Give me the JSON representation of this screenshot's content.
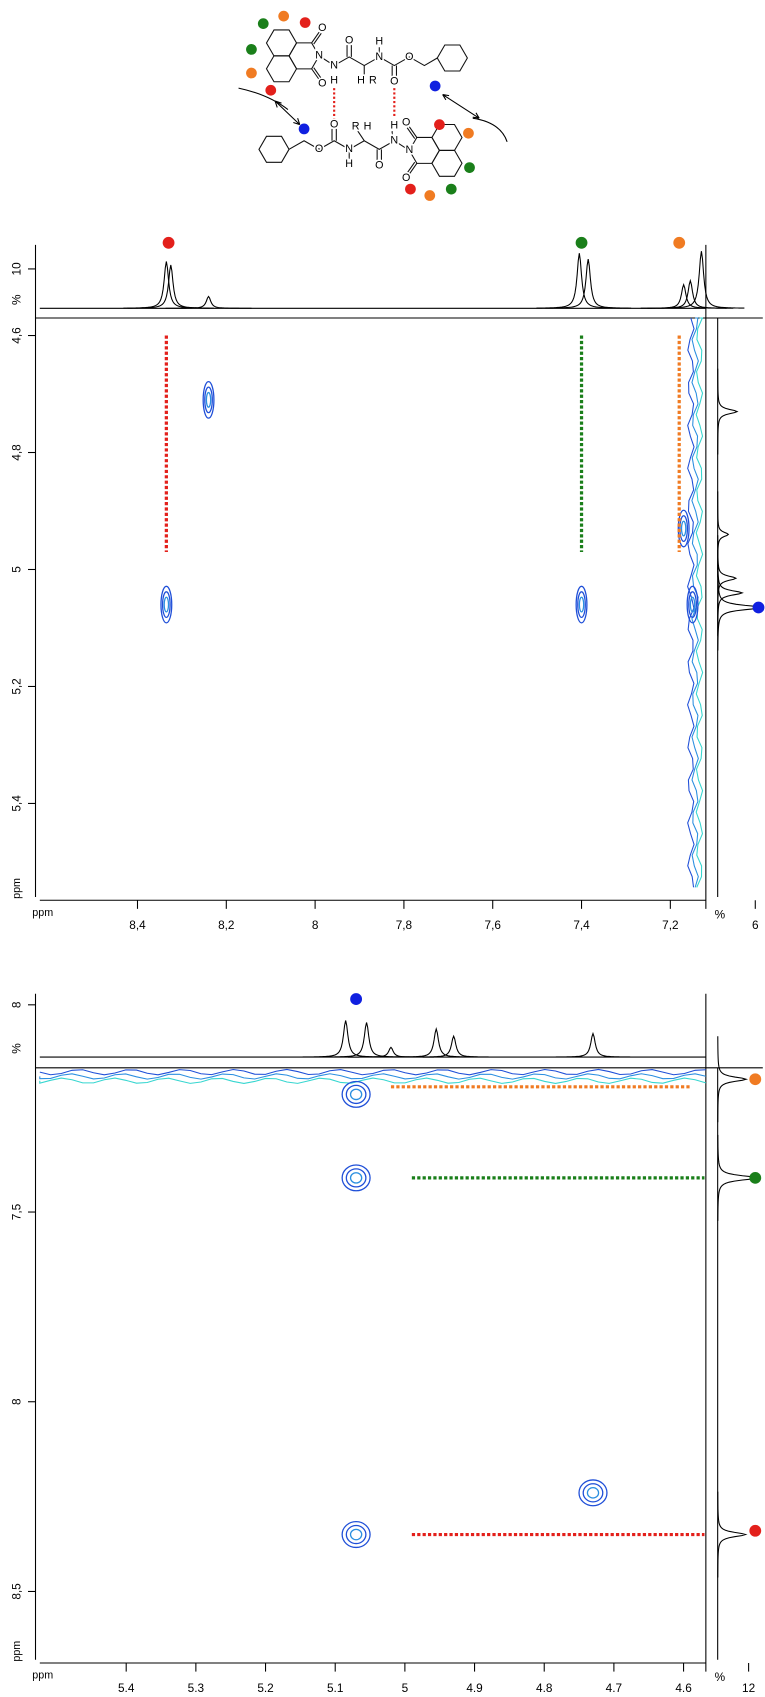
{
  "structure": {
    "atom_labels": [
      "N",
      "N",
      "H",
      "O",
      "H",
      "R",
      "H",
      "N",
      "O",
      "O",
      "O",
      "O",
      "N",
      "N",
      "H",
      "O",
      "R",
      "H",
      "N",
      "H",
      "O",
      "O",
      "O",
      "O"
    ]
  },
  "chart_data": [
    {
      "type": "contour",
      "xlabel": "ppm",
      "ylabel": "ppm",
      "xlim": [
        8.62,
        7.12
      ],
      "ylim": [
        4.57,
        5.56
      ],
      "xticks": [
        {
          "value": 8.4,
          "label": "8,4"
        },
        {
          "value": 8.2,
          "label": "8,2"
        },
        8,
        {
          "value": 7.8,
          "label": "7,8"
        },
        {
          "value": 7.6,
          "label": "7,6"
        },
        {
          "value": 7.4,
          "label": "7,4"
        },
        {
          "value": 7.2,
          "label": "7,2"
        }
      ],
      "yticks": [
        {
          "value": 4.6,
          "label": "4,6"
        },
        {
          "value": 4.8,
          "label": "4,8"
        },
        5,
        {
          "value": 5.2,
          "label": "5,2"
        },
        {
          "value": 5.4,
          "label": "5,4"
        }
      ],
      "cross_peaks": {
        "x": [
          8.335,
          8.24,
          7.4,
          7.17,
          7.15
        ],
        "y": [
          5.06,
          4.71,
          5.06,
          4.93,
          5.06
        ]
      },
      "top_projection": {
        "label": "%",
        "lim": [
          0,
          15
        ],
        "ticks": [
          10
        ],
        "peaks": {
          "x": [
            8.335,
            8.325,
            8.24,
            7.405,
            7.385,
            7.17,
            7.155,
            7.13
          ],
          "values": [
            11.9,
            11,
            3,
            14,
            12.5,
            6,
            7,
            14.5
          ]
        }
      },
      "side_projection": {
        "label": "%",
        "lim": [
          0,
          7.2
        ],
        "ticks": [
          6
        ],
        "peaks": {
          "y": [
            4.73,
            4.94,
            5.015,
            5.04,
            5.065
          ],
          "values": [
            3.1,
            1.7,
            2.9,
            3.9,
            7.2
          ]
        }
      },
      "correlations": [
        {
          "color": "#e3201b",
          "x": 8.335,
          "y": [
            4.6,
            4.97
          ]
        },
        {
          "color": "#1a7f1a",
          "x": 7.4,
          "y": [
            4.6,
            4.97
          ]
        },
        {
          "color": "#f07b22",
          "x": 7.18,
          "y": [
            4.6,
            4.97
          ]
        }
      ],
      "top_markers": {
        "x": [
          8.33,
          7.4,
          7.18
        ],
        "colors": [
          "#e3201b",
          "#1a7f1a",
          "#f07b22"
        ]
      },
      "side_markers": {
        "y": [
          5.065
        ],
        "colors": [
          "#1020e0"
        ]
      }
    },
    {
      "type": "contour",
      "xlabel": "ppm",
      "ylabel": "ppm",
      "xlim": [
        5.524,
        4.568
      ],
      "ylim": [
        7.12,
        8.68
      ],
      "xticks": [
        {
          "value": 5.4,
          "label": "5,4"
        },
        {
          "value": 5.3,
          "label": "5,3"
        },
        {
          "value": 5.2,
          "label": "5,2"
        },
        {
          "value": 5.1,
          "label": "5,1"
        },
        5,
        {
          "value": 4.9,
          "label": "4,9"
        },
        {
          "value": 4.8,
          "label": "4,8"
        },
        {
          "value": 4.7,
          "label": "4,7"
        },
        {
          "value": 4.6,
          "label": "4,6"
        }
      ],
      "yticks": [
        {
          "value": 7.5,
          "label": "7,5"
        },
        8,
        {
          "value": 8.5,
          "label": "8,5"
        }
      ],
      "cross_peaks": {
        "x": [
          5.07,
          5.07,
          5.07,
          4.73
        ],
        "y": [
          7.19,
          7.41,
          8.35,
          8.24
        ]
      },
      "top_projection": {
        "label": "%",
        "lim": [
          0,
          9.7
        ],
        "ticks": [
          8
        ],
        "peaks": {
          "x": [
            5.085,
            5.055,
            5.02,
            4.955,
            4.93,
            4.73
          ],
          "values": [
            5.6,
            5.3,
            1.5,
            4.3,
            3.2,
            3.6
          ]
        }
      },
      "side_projection": {
        "label": "%",
        "lim": [
          0,
          17.5
        ],
        "ticks": [
          12
        ],
        "peaks": {
          "y": [
            7.15,
            7.41,
            8.35
          ],
          "values": [
            11,
            15.8,
            10.8
          ]
        }
      },
      "correlations": [
        {
          "color": "#f07b22",
          "y": 7.17,
          "x": [
            5.02,
            4.59
          ]
        },
        {
          "color": "#1a7f1a",
          "y": 7.41,
          "x": [
            4.99,
            4.57
          ]
        },
        {
          "color": "#e3201b",
          "y": 8.35,
          "x": [
            4.99,
            4.57
          ]
        }
      ],
      "top_markers": {
        "x": [
          5.07
        ],
        "colors": [
          "#1020e0"
        ]
      },
      "side_markers": {
        "y": [
          7.15,
          7.41,
          8.34
        ],
        "colors": [
          "#f07b22",
          "#1a7f1a",
          "#e3201b"
        ]
      }
    }
  ]
}
